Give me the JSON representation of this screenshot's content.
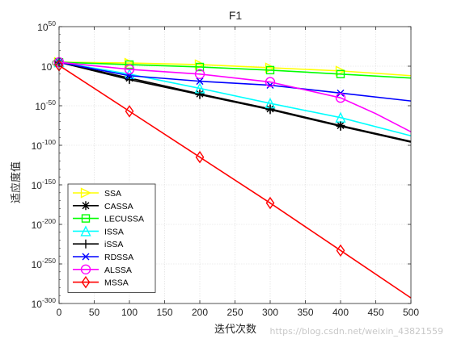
{
  "watermark": "https://blog.csdn.net/weixin_43821559",
  "chart_data": {
    "type": "line",
    "title": "F1",
    "xlabel": "迭代次数",
    "ylabel": "适应度值",
    "yscale": "log",
    "xlim": [
      0,
      500
    ],
    "ylim_exponent": [
      -300,
      50
    ],
    "xticks": [
      "0",
      "50",
      "100",
      "150",
      "200",
      "250",
      "300",
      "350",
      "400",
      "450",
      "500"
    ],
    "yticks_exponent": [
      50,
      0,
      -50,
      -100,
      -150,
      -200,
      -250,
      -300
    ],
    "ytick_base": "10",
    "grid": true,
    "legend_position": "bottom-left",
    "marker_x": [
      0,
      100,
      200,
      300,
      400
    ],
    "series": [
      {
        "name": "SSA",
        "color": "#ffff00",
        "marker": "triangle-right",
        "x": [
          0,
          100,
          200,
          300,
          400,
          500
        ],
        "log10_y": [
          5,
          4,
          2,
          -2,
          -6,
          -12
        ]
      },
      {
        "name": "CASSA",
        "color": "#000000",
        "marker": "asterisk",
        "x": [
          0,
          100,
          200,
          300,
          400,
          500
        ],
        "log10_y": [
          5,
          -15,
          -35,
          -54,
          -75,
          -95
        ]
      },
      {
        "name": "LECUSSA",
        "color": "#00ff00",
        "marker": "square",
        "x": [
          0,
          100,
          200,
          300,
          400,
          500
        ],
        "log10_y": [
          5,
          2,
          -1,
          -5,
          -10,
          -15
        ]
      },
      {
        "name": "ISSA",
        "color": "#00ffff",
        "marker": "triangle-up",
        "x": [
          0,
          100,
          200,
          300,
          400,
          500
        ],
        "log10_y": [
          5,
          -10,
          -28,
          -47,
          -65,
          -88
        ]
      },
      {
        "name": "iSSA",
        "color": "#000000",
        "marker": "plus",
        "x": [
          0,
          100,
          200,
          300,
          400,
          500
        ],
        "log10_y": [
          5,
          -17,
          -36,
          -55,
          -76,
          -96
        ]
      },
      {
        "name": "RDSSA",
        "color": "#0000ff",
        "marker": "x",
        "x": [
          0,
          100,
          200,
          300,
          400,
          500
        ],
        "log10_y": [
          5,
          -12,
          -19,
          -24,
          -34,
          -44
        ]
      },
      {
        "name": "ALSSA",
        "color": "#ff00ff",
        "marker": "circle",
        "x": [
          0,
          100,
          200,
          300,
          400,
          450,
          500
        ],
        "log10_y": [
          5,
          -4,
          -10,
          -20,
          -40,
          -60,
          -83
        ]
      },
      {
        "name": "MSSA",
        "color": "#ff0000",
        "marker": "diamond",
        "x": [
          0,
          100,
          200,
          300,
          400,
          500
        ],
        "log10_y": [
          1,
          -57,
          -115,
          -173,
          -233,
          -293
        ]
      }
    ]
  }
}
